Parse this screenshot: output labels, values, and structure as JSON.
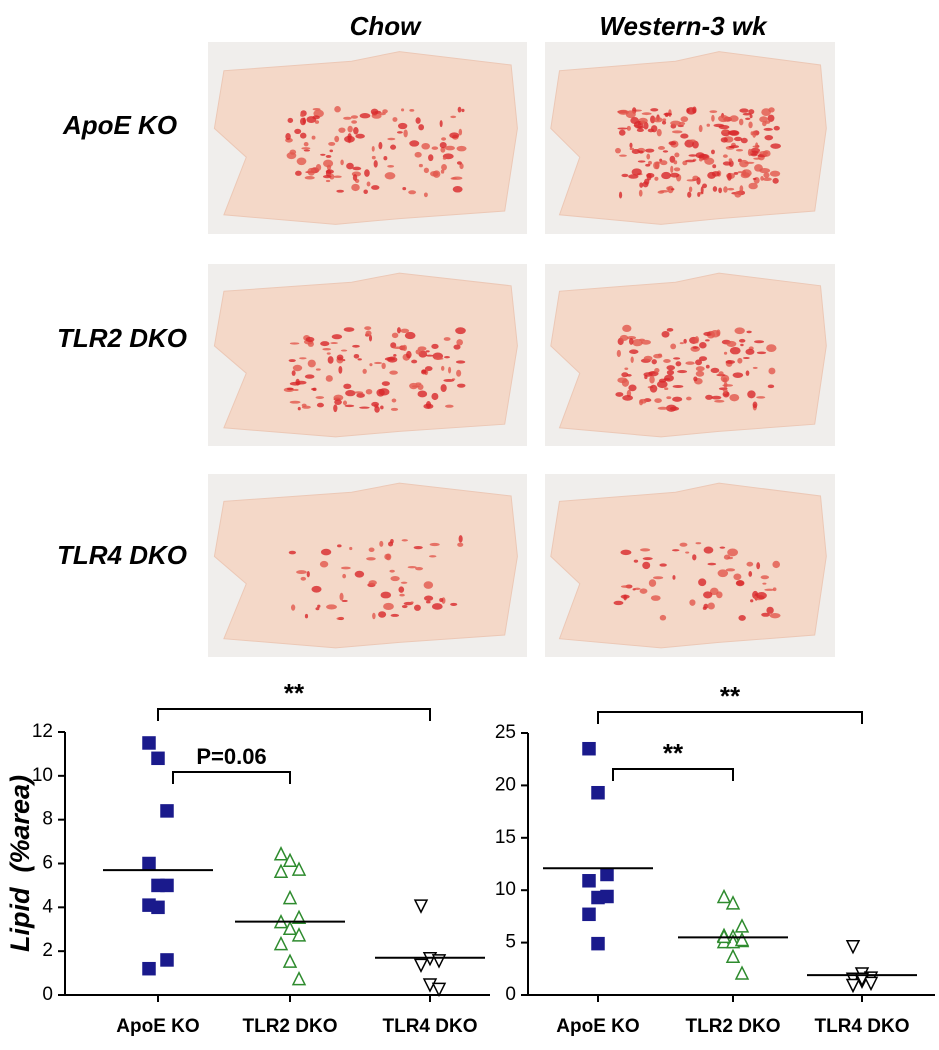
{
  "image_panel": {
    "columns": [
      "Chow",
      "Western-3 wk"
    ],
    "rows": [
      "ApoE KO",
      "TLR2 DKO",
      "TLR4 DKO"
    ]
  },
  "chart_data": [
    {
      "type": "scatter",
      "y_label": "Lipid  (%area)",
      "categories": [
        "ApoE KO",
        "TLR2 DKO",
        "TLR4 DKO"
      ],
      "ylim": [
        0,
        12
      ],
      "yticks": [
        0,
        2,
        4,
        6,
        8,
        10,
        12
      ],
      "series": [
        {
          "color": "#1a1a8c",
          "marker": "square",
          "filled": true,
          "values": [
            11.5,
            10.8,
            8.4,
            6.0,
            5.0,
            5.0,
            4.1,
            4.0,
            1.6,
            1.2
          ]
        },
        {
          "color": "#2e8b2e",
          "marker": "triangle-up",
          "filled": false,
          "values": [
            6.4,
            6.1,
            5.7,
            5.6,
            4.4,
            3.5,
            3.3,
            3.0,
            2.7,
            2.3,
            1.5,
            0.7
          ]
        },
        {
          "color": "#000000",
          "marker": "triangle-down",
          "filled": false,
          "values": [
            4.1,
            1.7,
            1.6,
            1.4,
            0.5,
            0.3
          ]
        }
      ],
      "means": [
        5.7,
        3.35,
        1.7
      ],
      "annotations": [
        {
          "from": 0,
          "to": 2,
          "label": "**"
        },
        {
          "from": 0,
          "to": 1,
          "label": "P=0.06"
        }
      ]
    },
    {
      "type": "scatter",
      "categories": [
        "ApoE KO",
        "TLR2 DKO",
        "TLR4 DKO"
      ],
      "ylim": [
        0,
        25
      ],
      "yticks": [
        0,
        5,
        10,
        15,
        20,
        25
      ],
      "series": [
        {
          "color": "#1a1a8c",
          "marker": "square",
          "filled": true,
          "values": [
            23.5,
            19.3,
            11.5,
            10.9,
            9.3,
            9.4,
            7.7,
            4.9
          ]
        },
        {
          "color": "#2e8b2e",
          "marker": "triangle-up",
          "filled": false,
          "values": [
            9.3,
            8.7,
            6.5,
            5.6,
            5.5,
            5.1,
            5.0,
            5.0,
            5.2,
            5.5,
            3.6,
            2.0
          ]
        },
        {
          "color": "#000000",
          "marker": "triangle-down",
          "filled": false,
          "values": [
            4.7,
            2.1,
            1.7,
            1.6,
            1.4,
            1.2,
            1.0,
            1.6
          ]
        }
      ],
      "means": [
        12.1,
        5.5,
        1.9
      ],
      "annotations": [
        {
          "from": 0,
          "to": 2,
          "label": "**"
        },
        {
          "from": 0,
          "to": 1,
          "label": "**"
        }
      ]
    }
  ]
}
